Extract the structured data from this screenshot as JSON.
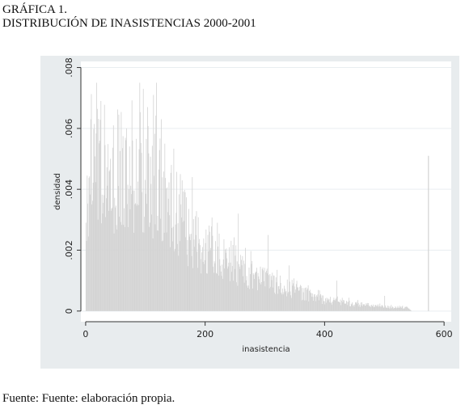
{
  "figure": {
    "label": "GRÁFICA 1.",
    "title": "DISTRIBUCIÓN DE INASISTENCIAS 2000-2001",
    "source": "Fuente: Fuente: elaboración propia."
  },
  "colors": {
    "panel_background": "#e8ecee",
    "plot_background": "#ffffff",
    "bar_fill": "#d3d3d3",
    "grid": "#e9eef0",
    "axis": "#333333"
  },
  "chart_data": {
    "type": "bar",
    "subtype": "histogram",
    "bin_width": 1,
    "xlabel": "inasistencia",
    "ylabel": "densidad",
    "xlim": [
      -8,
      612
    ],
    "ylim": [
      -0.00035,
      0.0082
    ],
    "xticks": [
      0,
      200,
      400,
      600
    ],
    "yticks": [
      0,
      0.002,
      0.004,
      0.006,
      0.008
    ],
    "xtick_labels": [
      "0",
      "200",
      "400",
      "600"
    ],
    "ytick_labels": [
      "0",
      ".002",
      ".004",
      ".006",
      ".008"
    ],
    "grid": true,
    "legend": "none",
    "envelope_x": [
      0,
      5,
      10,
      20,
      30,
      50,
      80,
      100,
      120,
      140,
      160,
      200,
      250,
      300,
      350,
      400,
      450,
      500,
      540,
      545
    ],
    "envelope_y": [
      0.0032,
      0.0044,
      0.0047,
      0.0049,
      0.0046,
      0.0044,
      0.0045,
      0.0046,
      0.0041,
      0.0036,
      0.0029,
      0.0021,
      0.0015,
      0.0011,
      0.0007,
      0.0004,
      0.00025,
      0.00015,
      0.0001,
      0.0
    ],
    "peaks": [
      {
        "x": 18,
        "y": 0.0075
      },
      {
        "x": 25,
        "y": 0.0069
      },
      {
        "x": 8,
        "y": 0.0063
      },
      {
        "x": 46,
        "y": 0.0061
      },
      {
        "x": 68,
        "y": 0.006
      },
      {
        "x": 90,
        "y": 0.0075
      },
      {
        "x": 96,
        "y": 0.0073
      },
      {
        "x": 103,
        "y": 0.0067
      },
      {
        "x": 113,
        "y": 0.0071
      },
      {
        "x": 118,
        "y": 0.0075
      },
      {
        "x": 126,
        "y": 0.0063
      },
      {
        "x": 132,
        "y": 0.0055
      },
      {
        "x": 143,
        "y": 0.0048
      },
      {
        "x": 158,
        "y": 0.0045
      },
      {
        "x": 178,
        "y": 0.0044
      },
      {
        "x": 220,
        "y": 0.0029
      },
      {
        "x": 255,
        "y": 0.0032
      },
      {
        "x": 305,
        "y": 0.0025
      },
      {
        "x": 340,
        "y": 0.0015
      },
      {
        "x": 420,
        "y": 0.001
      },
      {
        "x": 500,
        "y": 0.0005
      }
    ],
    "outlier": {
      "x": 573,
      "y": 0.0051
    }
  }
}
